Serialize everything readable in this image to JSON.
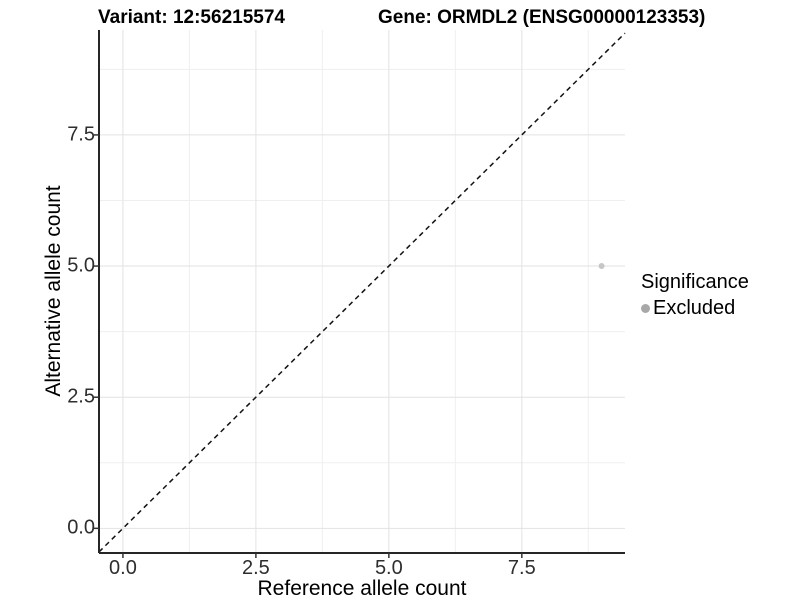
{
  "header": {
    "variant_title": "Variant: 12:56215574",
    "gene_title": "Gene: ORMDL2 (ENSG00000123353)"
  },
  "chart_data": {
    "type": "scatter",
    "xlabel": "Reference allele count",
    "ylabel": "Alternative allele count",
    "xlim": [
      -0.45,
      9.44
    ],
    "ylim": [
      -0.47,
      9.5
    ],
    "x_ticks": {
      "values": [
        0,
        2.5,
        5,
        7.5
      ],
      "labels": [
        "0.0",
        "2.5",
        "5.0",
        "7.5"
      ]
    },
    "y_ticks": {
      "values": [
        0,
        2.5,
        5,
        7.5
      ],
      "labels": [
        "0.0",
        "2.5",
        "5.0",
        "7.5"
      ]
    },
    "x_minor_ticks": [
      1.25,
      3.75,
      6.25,
      8.75
    ],
    "y_minor_ticks": [
      1.25,
      3.75,
      6.25,
      8.75
    ],
    "grid": true,
    "points": [
      {
        "x": 9,
        "y": 5,
        "series": "Excluded"
      }
    ],
    "identity_line": {
      "slope": 1,
      "intercept": 0,
      "style": "dashed"
    },
    "legend": {
      "title": "Significance",
      "position": "right",
      "items": [
        {
          "label": "Excluded",
          "color": "#a8a8a8"
        }
      ]
    },
    "colors": {
      "point": "#c6c6c6",
      "grid_major": "#e2e2e2",
      "grid_minor": "#efefef",
      "axis_line": "#262626",
      "tick_mark": "#333333",
      "dashed_line": "#111111",
      "background": "#ffffff"
    }
  }
}
